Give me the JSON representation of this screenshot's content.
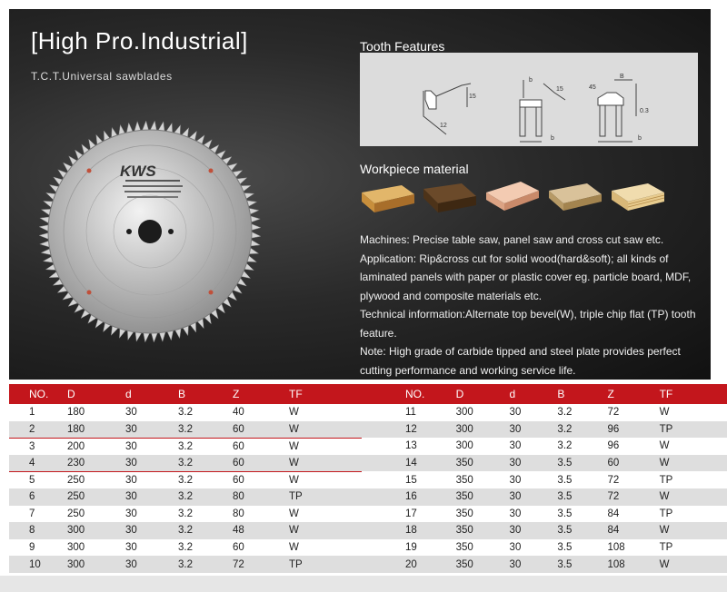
{
  "header": {
    "title": "[High Pro.Industrial]",
    "subtitle": "T.C.T.Universal sawblades"
  },
  "blade": {
    "brand": "KWS"
  },
  "tooth_features": {
    "heading": "Tooth Features",
    "labels": [
      "15",
      "12",
      "b",
      "15",
      "b",
      "45",
      "B",
      "0.3",
      "b"
    ]
  },
  "workpiece": {
    "heading": "Workpiece material",
    "samples": [
      "solid-wood-light",
      "solid-wood-dark",
      "mdf",
      "particle-board",
      "plywood"
    ]
  },
  "description": {
    "machines": "Machines: Precise table saw, panel saw and cross cut saw etc.",
    "application": "Application: Rip&cross cut for solid wood(hard&soft); all kinds of laminated panels with paper or plastic cover eg. particle board, MDF, plywood and composite materials etc.",
    "technical": "Technical information:Alternate top bevel(W), triple chip flat (TP) tooth feature.",
    "note": "Note: High grade of carbide tipped and steel plate provides perfect cutting performance and working service life."
  },
  "table": {
    "headers": [
      "NO.",
      "D",
      "d",
      "B",
      "Z",
      "TF"
    ],
    "left_rows": [
      [
        "1",
        "180",
        "30",
        "3.2",
        "40",
        "W"
      ],
      [
        "2",
        "180",
        "30",
        "3.2",
        "60",
        "W"
      ],
      [
        "3",
        "200",
        "30",
        "3.2",
        "60",
        "W"
      ],
      [
        "4",
        "230",
        "30",
        "3.2",
        "60",
        "W"
      ],
      [
        "5",
        "250",
        "30",
        "3.2",
        "60",
        "W"
      ],
      [
        "6",
        "250",
        "30",
        "3.2",
        "80",
        "TP"
      ],
      [
        "7",
        "250",
        "30",
        "3.2",
        "80",
        "W"
      ],
      [
        "8",
        "300",
        "30",
        "3.2",
        "48",
        "W"
      ],
      [
        "9",
        "300",
        "30",
        "3.2",
        "60",
        "W"
      ],
      [
        "10",
        "300",
        "30",
        "3.2",
        "72",
        "TP"
      ]
    ],
    "right_rows": [
      [
        "11",
        "300",
        "30",
        "3.2",
        "72",
        "W"
      ],
      [
        "12",
        "300",
        "30",
        "3.2",
        "96",
        "TP"
      ],
      [
        "13",
        "300",
        "30",
        "3.2",
        "96",
        "W"
      ],
      [
        "14",
        "350",
        "30",
        "3.5",
        "60",
        "W"
      ],
      [
        "15",
        "350",
        "30",
        "3.5",
        "72",
        "TP"
      ],
      [
        "16",
        "350",
        "30",
        "3.5",
        "72",
        "W"
      ],
      [
        "17",
        "350",
        "30",
        "3.5",
        "84",
        "TP"
      ],
      [
        "18",
        "350",
        "30",
        "3.5",
        "84",
        "W"
      ],
      [
        "19",
        "350",
        "30",
        "3.5",
        "108",
        "TP"
      ],
      [
        "20",
        "350",
        "30",
        "3.5",
        "108",
        "W"
      ]
    ]
  },
  "colors": {
    "accent_red": "#c3161c",
    "row_gray": "#dedede",
    "hero_dark": "#2a2a2a"
  }
}
